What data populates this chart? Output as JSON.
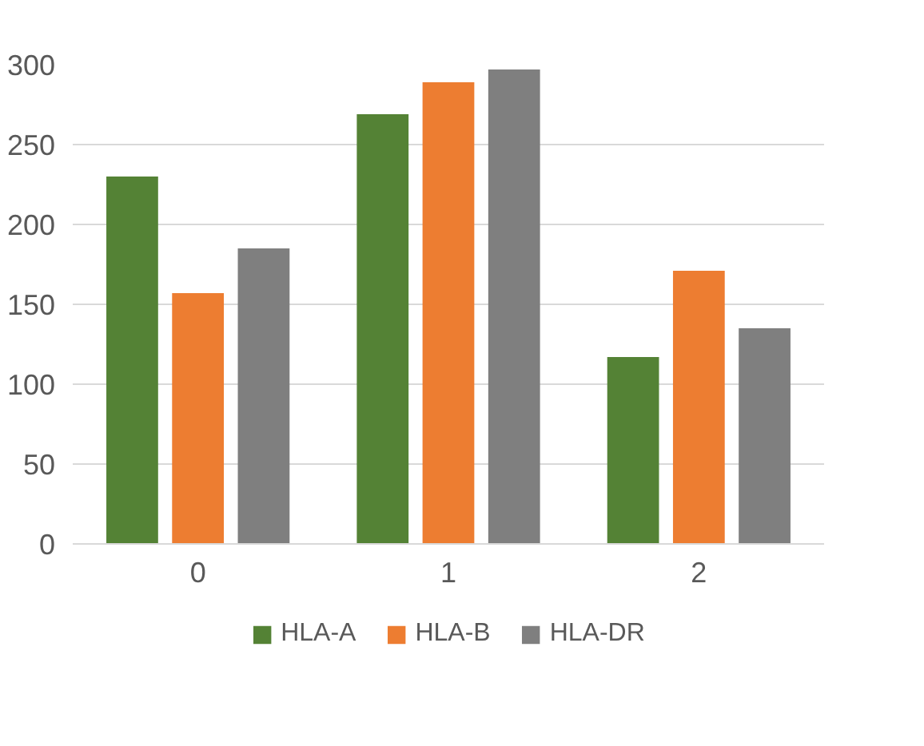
{
  "chart_data": {
    "type": "bar",
    "categories": [
      "0",
      "1",
      "2"
    ],
    "series": [
      {
        "name": "HLA-A",
        "color": "#548235",
        "values": [
          230,
          269,
          117
        ]
      },
      {
        "name": "HLA-B",
        "color": "#ed7d31",
        "values": [
          157,
          289,
          171
        ]
      },
      {
        "name": "HLA-DR",
        "color": "#7f7f7f",
        "values": [
          185,
          297,
          135
        ]
      }
    ],
    "ylim": [
      0,
      300
    ],
    "yticks": [
      0,
      50,
      100,
      150,
      200,
      250,
      300
    ],
    "grid": "y",
    "legend": "bottom"
  }
}
